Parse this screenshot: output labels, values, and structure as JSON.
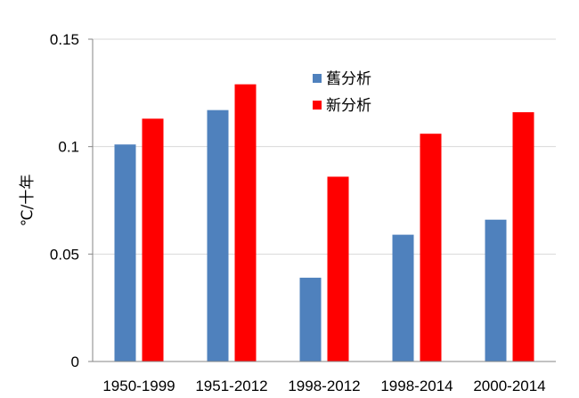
{
  "chart_data": {
    "type": "bar",
    "title": "",
    "xlabel": "",
    "ylabel": "℃/十年",
    "ylim": [
      0,
      0.15
    ],
    "yticks": [
      {
        "value": 0,
        "label": "0"
      },
      {
        "value": 0.05,
        "label": "0.05"
      },
      {
        "value": 0.1,
        "label": "0.1"
      },
      {
        "value": 0.15,
        "label": "0.15"
      }
    ],
    "categories": [
      "1950-1999",
      "1951-2012",
      "1998-2012",
      "1998-2014",
      "2000-2014"
    ],
    "series": [
      {
        "name": "舊分析",
        "color": "#4F81BD",
        "values": [
          0.101,
          0.117,
          0.039,
          0.059,
          0.066
        ]
      },
      {
        "name": "新分析",
        "color": "#FF0000",
        "values": [
          0.113,
          0.129,
          0.086,
          0.106,
          0.116
        ]
      }
    ],
    "grid": true,
    "legend_position": "top-center"
  }
}
